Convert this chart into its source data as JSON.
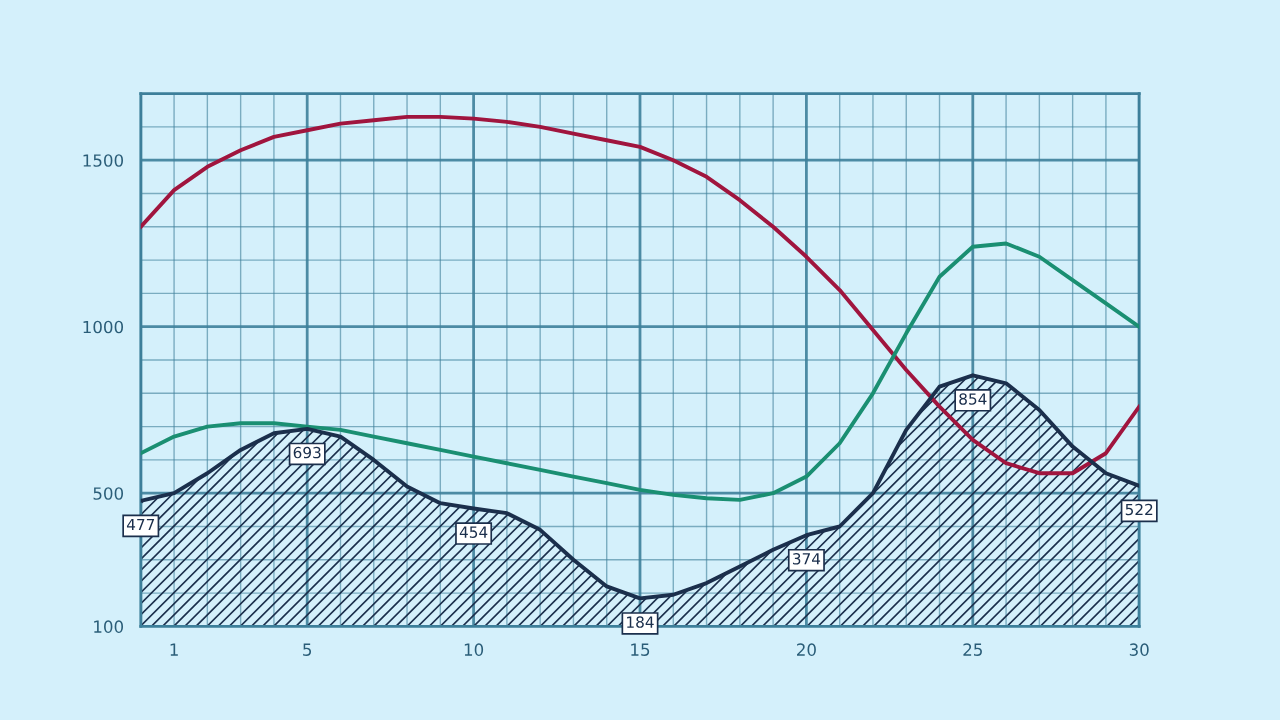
{
  "chart_data": {
    "type": "line",
    "x": [
      0,
      1,
      2,
      3,
      4,
      5,
      6,
      7,
      8,
      9,
      10,
      11,
      12,
      13,
      14,
      15,
      16,
      17,
      18,
      19,
      20,
      21,
      22,
      23,
      24,
      25,
      26,
      27,
      28,
      29,
      30
    ],
    "series": [
      {
        "type": "area",
        "color": "#1b2f4c",
        "values": [
          477,
          500,
          560,
          630,
          680,
          693,
          670,
          600,
          520,
          470,
          454,
          440,
          390,
          300,
          220,
          184,
          195,
          230,
          280,
          330,
          374,
          400,
          500,
          690,
          820,
          854,
          830,
          750,
          640,
          560,
          522
        ],
        "value_labels": [
          "477",
          null,
          null,
          null,
          null,
          "693",
          null,
          null,
          null,
          null,
          "454",
          null,
          null,
          null,
          null,
          "184",
          null,
          null,
          null,
          null,
          "374",
          null,
          null,
          null,
          null,
          "854",
          null,
          null,
          null,
          null,
          "522"
        ]
      },
      {
        "color": "#a0153e",
        "values": [
          1300,
          1410,
          1480,
          1530,
          1570,
          1590,
          1610,
          1620,
          1630,
          1630,
          1625,
          1615,
          1600,
          1580,
          1560,
          1540,
          1500,
          1450,
          1380,
          1300,
          1210,
          1110,
          990,
          870,
          760,
          660,
          590,
          560,
          560,
          620,
          760
        ]
      },
      {
        "color": "#1a8f72",
        "values": [
          620,
          670,
          700,
          710,
          710,
          700,
          690,
          670,
          650,
          630,
          610,
          590,
          570,
          550,
          530,
          510,
          495,
          485,
          480,
          500,
          550,
          650,
          800,
          980,
          1150,
          1240,
          1250,
          1210,
          1140,
          1070,
          1000
        ]
      }
    ],
    "xlim": [
      0,
      30
    ],
    "xticks": [
      {
        "value": 0,
        "label": null
      },
      1,
      {
        "value": 2,
        "label": null
      },
      {
        "value": 3,
        "label": null
      },
      {
        "value": 4,
        "label": null
      },
      5,
      {
        "value": 6,
        "label": null
      },
      {
        "value": 7,
        "label": null
      },
      {
        "value": 8,
        "label": null
      },
      {
        "value": 9,
        "label": null
      },
      10,
      {
        "value": 11,
        "label": null
      },
      {
        "value": 12,
        "label": null
      },
      {
        "value": 13,
        "label": null
      },
      {
        "value": 14,
        "label": null
      },
      15,
      {
        "value": 16,
        "label": null
      },
      {
        "value": 17,
        "label": null
      },
      {
        "value": 18,
        "label": null
      },
      {
        "value": 19,
        "label": null
      },
      20,
      {
        "value": 21,
        "label": null
      },
      {
        "value": 22,
        "label": null
      },
      {
        "value": 23,
        "label": null
      },
      {
        "value": 24,
        "label": null
      },
      25,
      {
        "value": 26,
        "label": null
      },
      {
        "value": 27,
        "label": null
      },
      {
        "value": 28,
        "label": null
      },
      {
        "value": 29,
        "label": null
      },
      30
    ],
    "ylim": [
      100,
      1700
    ],
    "yticks": [
      100,
      {
        "value": 200,
        "label": null
      },
      {
        "value": 300,
        "label": null
      },
      {
        "value": 400,
        "label": null
      },
      500,
      {
        "value": 600,
        "label": null
      },
      {
        "value": 700,
        "label": null
      },
      {
        "value": 800,
        "label": null
      },
      {
        "value": 900,
        "label": null
      },
      1000,
      {
        "value": 1100,
        "label": null
      },
      {
        "value": 1200,
        "label": null
      },
      {
        "value": 1300,
        "label": null
      },
      {
        "value": 1400,
        "label": null
      },
      1500,
      {
        "value": 1600,
        "label": null
      },
      {
        "value": 1700,
        "label": null
      }
    ],
    "grid": true,
    "marker": "none",
    "line_style": "solid"
  }
}
